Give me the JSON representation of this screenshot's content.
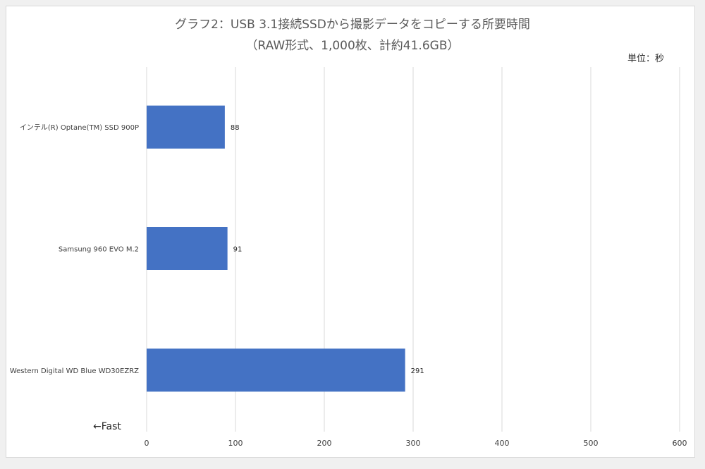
{
  "title_line1": "グラフ2：USB 3.1接続SSDから撮影データをコピーする所要時間",
  "title_line2": "（RAW形式、1,000枚、計約41.6GB）",
  "unit_label": "単位：秒",
  "fast_label": "←Fast",
  "colors": {
    "bar": "#4472c4",
    "grid": "#d9d9d9"
  },
  "chart_data": {
    "type": "bar",
    "orientation": "horizontal",
    "categories": [
      "インテル(R) Optane(TM) SSD 900P",
      "Samsung 960 EVO M.2",
      "Western Digital WD Blue WD30EZRZ"
    ],
    "values": [
      88,
      91,
      291
    ],
    "xlim": [
      0,
      600
    ],
    "xticks": [
      0,
      100,
      200,
      300,
      400,
      500,
      600
    ],
    "grid": true,
    "title": "グラフ2：USB 3.1接続SSDから撮影データをコピーする所要時間",
    "subtitle": "（RAW形式、1,000枚、計約41.6GB）"
  }
}
